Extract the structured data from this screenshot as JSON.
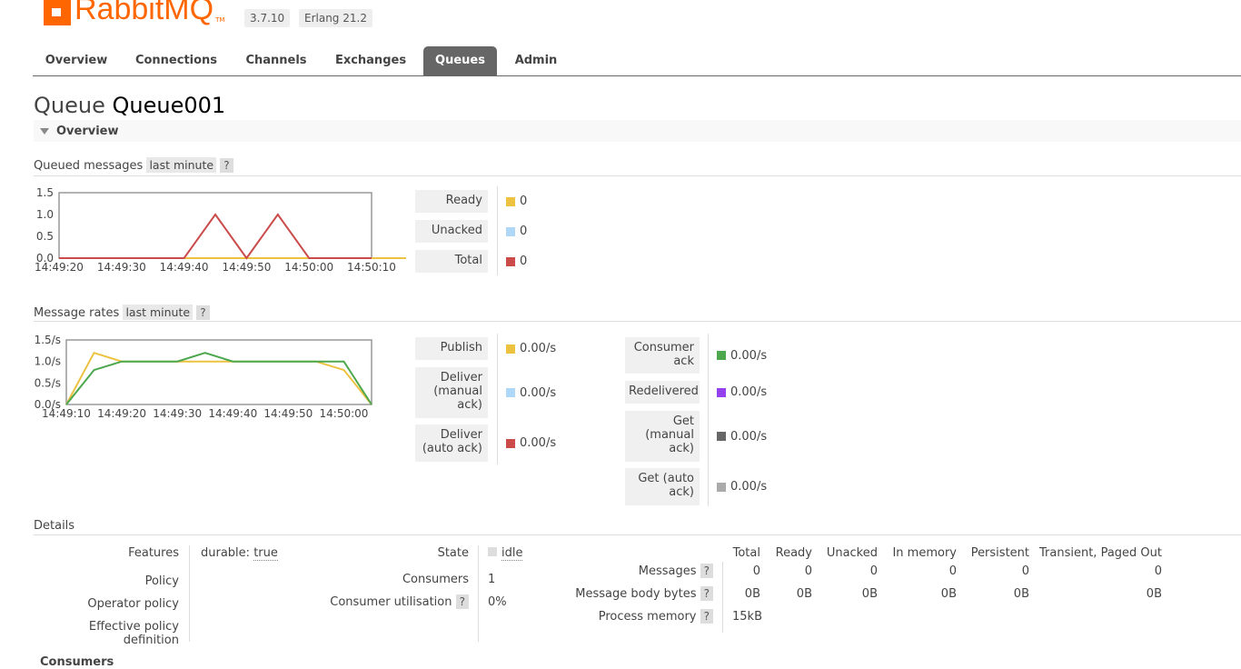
{
  "header": {
    "logo_text": "RabbitMQ",
    "logo_tm": "TM",
    "version": "3.7.10",
    "erlang": "Erlang 21.2"
  },
  "tabs": [
    {
      "label": "Overview",
      "active": false
    },
    {
      "label": "Connections",
      "active": false
    },
    {
      "label": "Channels",
      "active": false
    },
    {
      "label": "Exchanges",
      "active": false
    },
    {
      "label": "Queues",
      "active": true
    },
    {
      "label": "Admin",
      "active": false
    }
  ],
  "page": {
    "title_prefix": "Queue",
    "title_name": "Queue001"
  },
  "overview_section": {
    "label": "Overview"
  },
  "queued": {
    "label": "Queued messages",
    "range": "last minute",
    "help": "?",
    "legend": [
      {
        "label": "Ready",
        "value": "0",
        "color": "#edc240"
      },
      {
        "label": "Unacked",
        "value": "0",
        "color": "#afd8f8"
      },
      {
        "label": "Total",
        "value": "0",
        "color": "#cb4b4b"
      }
    ]
  },
  "rates": {
    "label": "Message rates",
    "range": "last minute",
    "help": "?",
    "legend_left": [
      {
        "label": "Publish",
        "value": "0.00/s",
        "color": "#edc240"
      },
      {
        "label": "Deliver (manual ack)",
        "value": "0.00/s",
        "color": "#afd8f8"
      },
      {
        "label": "Deliver (auto ack)",
        "value": "0.00/s",
        "color": "#cb4b4b"
      }
    ],
    "legend_right": [
      {
        "label": "Consumer ack",
        "value": "0.00/s",
        "color": "#4da74d"
      },
      {
        "label": "Redelivered",
        "value": "0.00/s",
        "color": "#9440ed"
      },
      {
        "label": "Get (manual ack)",
        "value": "0.00/s",
        "color": "#666666"
      },
      {
        "label": "Get (auto ack)",
        "value": "0.00/s",
        "color": "#aaaaaa"
      }
    ]
  },
  "chart_data": [
    {
      "type": "line",
      "x": [
        "14:49:20",
        "14:49:30",
        "14:49:40",
        "14:49:50",
        "14:50:00",
        "14:50:10"
      ],
      "ylim": [
        0,
        1.5
      ],
      "yticks": [
        "1.5",
        "1.0",
        "0.5",
        "0.0"
      ],
      "series": [
        {
          "name": "Ready",
          "color": "#edc240",
          "points": [
            [
              0,
              0
            ],
            [
              20,
              0
            ],
            [
              30,
              0
            ],
            [
              40,
              0
            ],
            [
              50,
              0
            ],
            [
              60,
              0
            ]
          ]
        },
        {
          "name": "Total",
          "color": "#cb4b4b",
          "points": [
            [
              0,
              0
            ],
            [
              20,
              0
            ],
            [
              25,
              1
            ],
            [
              30,
              0
            ],
            [
              35,
              1
            ],
            [
              40,
              0
            ],
            [
              50,
              0
            ]
          ]
        }
      ]
    },
    {
      "type": "line",
      "x": [
        "14:49:10",
        "14:49:20",
        "14:49:30",
        "14:49:40",
        "14:49:50",
        "14:50:00"
      ],
      "ylim": [
        0,
        1.5
      ],
      "yticks": [
        "1.5/s",
        "1.0/s",
        "0.5/s",
        "0.0/s"
      ],
      "series": [
        {
          "name": "Publish",
          "color": "#edc240",
          "points": [
            [
              0,
              0
            ],
            [
              5,
              1.2
            ],
            [
              10,
              1.0
            ],
            [
              20,
              1.0
            ],
            [
              30,
              1.0
            ],
            [
              45,
              1.0
            ],
            [
              50,
              0.8
            ],
            [
              55,
              0
            ]
          ]
        },
        {
          "name": "Consumer ack",
          "color": "#4da74d",
          "points": [
            [
              0,
              0
            ],
            [
              5,
              0.8
            ],
            [
              10,
              1.0
            ],
            [
              20,
              1.0
            ],
            [
              25,
              1.2
            ],
            [
              30,
              1.0
            ],
            [
              45,
              1.0
            ],
            [
              50,
              1.0
            ],
            [
              55,
              0
            ]
          ]
        }
      ]
    }
  ],
  "details": {
    "label": "Details",
    "left": [
      {
        "label": "Features",
        "value": "durable:",
        "value2": "true"
      },
      {
        "label": "Policy",
        "value": ""
      },
      {
        "label": "Operator policy",
        "value": ""
      },
      {
        "label": "Effective policy definition",
        "value": ""
      }
    ],
    "mid": [
      {
        "label": "State",
        "value": "idle"
      },
      {
        "label": "Consumers",
        "value": "1"
      },
      {
        "label": "Consumer utilisation",
        "help": "?",
        "value": "0%"
      }
    ],
    "table_headers": [
      "Total",
      "Ready",
      "Unacked",
      "In memory",
      "Persistent",
      "Transient, Paged Out"
    ],
    "table_rows": [
      {
        "label": "Messages",
        "help": "?",
        "values": [
          "0",
          "0",
          "0",
          "0",
          "0",
          "0"
        ]
      },
      {
        "label": "Message body bytes",
        "help": "?",
        "values": [
          "0B",
          "0B",
          "0B",
          "0B",
          "0B",
          "0B"
        ]
      },
      {
        "label": "Process memory",
        "help": "?",
        "values": [
          "15kB"
        ]
      }
    ]
  },
  "next_section": {
    "label": "Consumers"
  }
}
